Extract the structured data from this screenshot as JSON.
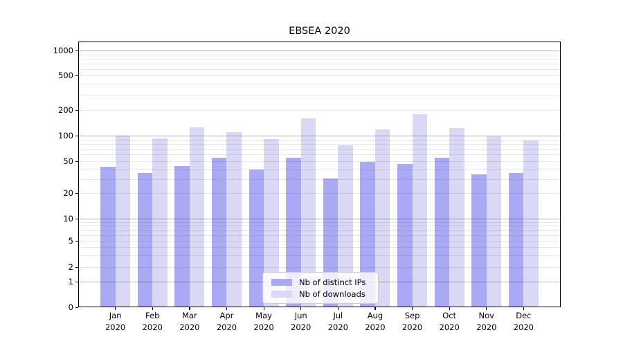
{
  "chart_data": {
    "type": "bar",
    "title": "EBSEA 2020",
    "months": [
      "Jan",
      "Feb",
      "Mar",
      "Apr",
      "May",
      "Jun",
      "Jul",
      "Aug",
      "Sep",
      "Oct",
      "Nov",
      "Dec"
    ],
    "year_label": "2020",
    "categories": [
      "Jan 2020",
      "Feb 2020",
      "Mar 2020",
      "Apr 2020",
      "May 2020",
      "Jun 2020",
      "Jul 2020",
      "Aug 2020",
      "Sep 2020",
      "Oct 2020",
      "Nov 2020",
      "Dec 2020"
    ],
    "series": [
      {
        "name": "Nb of distinct IPs",
        "color": "#a9a9f4",
        "values": [
          43,
          36,
          44,
          56,
          40,
          56,
          31,
          50,
          47,
          56,
          35,
          36
        ]
      },
      {
        "name": "Nb of downloads",
        "color": "#d9d9f6",
        "values": [
          101,
          93,
          127,
          111,
          92,
          160,
          78,
          120,
          179,
          125,
          99,
          88
        ]
      }
    ],
    "yscale": "log-like with zero baseline (symlog)",
    "y_ticks": [
      1000,
      500,
      200,
      100,
      50,
      20,
      10,
      5,
      2,
      1,
      0
    ],
    "ylim": [
      0,
      1300
    ],
    "xlabel": "",
    "ylabel": "",
    "grid": "on (major + minor horizontal lines)",
    "legend_position": "lower center"
  }
}
